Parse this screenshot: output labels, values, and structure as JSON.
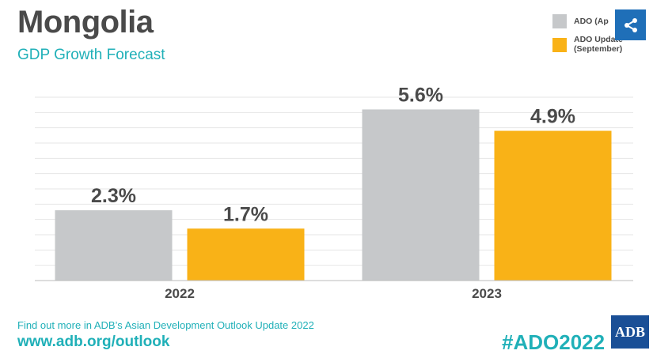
{
  "header": {
    "title": "Mongolia",
    "subtitle": "GDP Growth Forecast"
  },
  "share": {
    "icon": "share-icon"
  },
  "chart_data": {
    "type": "bar",
    "title": "Mongolia",
    "subtitle": "GDP Growth Forecast",
    "categories": [
      "2022",
      "2023"
    ],
    "series": [
      {
        "name": "ADO (April)",
        "values": [
          2.3,
          5.6
        ],
        "labels": [
          "2.3%",
          "5.6%"
        ],
        "color": "#c6c8ca"
      },
      {
        "name": "ADO Update (September)",
        "values": [
          1.7,
          4.9
        ],
        "labels": [
          "1.7%",
          "4.9%"
        ],
        "color": "#f9b217"
      }
    ],
    "legend": {
      "position": "top-right",
      "items": [
        {
          "label": "ADO (Ap",
          "color": "#c6c8ca"
        },
        {
          "label": "ADO Update\n(September)",
          "color": "#f9b217"
        }
      ]
    },
    "ylim": [
      0,
      6.0
    ],
    "grid": true,
    "xlabel": "",
    "ylabel": ""
  },
  "footer": {
    "line": "Find out more in ADB’s Asian Development Outlook Update 2022",
    "url": "www.adb.org/outlook",
    "hashtag": "#ADO2022",
    "logo": "ADB"
  },
  "colors": {
    "accent": "#20b0b8",
    "title": "#4a4a4a",
    "share_bg": "#1f6fb8",
    "logo_bg": "#1a4f96"
  }
}
